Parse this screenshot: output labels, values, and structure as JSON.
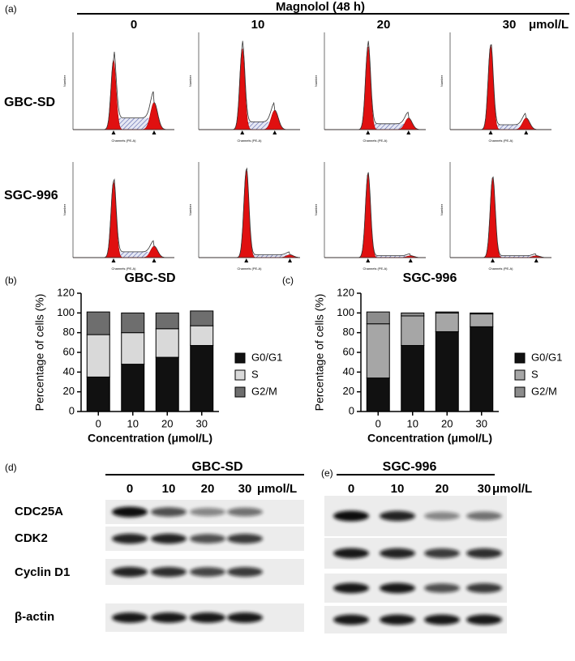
{
  "panel_a": {
    "label": "(a)",
    "title": "Magnolol (48 h)",
    "concentrations": [
      "0",
      "10",
      "20",
      "30"
    ],
    "unit": "μmol/L",
    "rows": [
      "GBC-SD",
      "SGC-996"
    ],
    "x_axis": "Channels (PE-A)",
    "y_axis": "Number"
  },
  "chart_data": [
    {
      "type": "stacked_bar",
      "label": "(b)",
      "title": "GBC-SD",
      "x_label": "Concentration (μmol/L)",
      "y_label": "Percentage of cells (%)",
      "categories": [
        "0",
        "10",
        "20",
        "30"
      ],
      "ylim": [
        0,
        120
      ],
      "yticks": [
        0,
        20,
        40,
        60,
        80,
        100,
        120
      ],
      "series": [
        {
          "name": "G0/G1",
          "color": "#111111",
          "values": [
            35,
            48,
            55,
            67
          ]
        },
        {
          "name": "S",
          "color": "#d9d9d9",
          "values": [
            43,
            32,
            29,
            20
          ]
        },
        {
          "name": "G2/M",
          "color": "#6e6e6e",
          "values": [
            23,
            20,
            16,
            15
          ]
        }
      ]
    },
    {
      "type": "stacked_bar",
      "label": "(c)",
      "title": "SGC-996",
      "x_label": "Concentration (μmol/L)",
      "y_label": "Percentage of cells (%)",
      "categories": [
        "0",
        "10",
        "20",
        "30"
      ],
      "ylim": [
        0,
        120
      ],
      "yticks": [
        0,
        20,
        40,
        60,
        80,
        100,
        120
      ],
      "series": [
        {
          "name": "G0/G1",
          "color": "#111111",
          "values": [
            34,
            67,
            81,
            86
          ]
        },
        {
          "name": "S",
          "color": "#a6a6a6",
          "values": [
            55,
            30,
            19,
            13
          ]
        },
        {
          "name": "G2/M",
          "color": "#8c8c8c",
          "values": [
            12,
            3,
            1,
            1
          ]
        }
      ]
    }
  ],
  "western": [
    {
      "label": "(d)",
      "cell_line": "GBC-SD",
      "concentrations": [
        "0",
        "10",
        "20",
        "30"
      ],
      "unit": "μmol/L",
      "proteins": [
        "CDC25A",
        "CDK2",
        "Cyclin D1",
        "β-actin"
      ]
    },
    {
      "label": "(e)",
      "cell_line": "SGC-996",
      "concentrations": [
        "0",
        "10",
        "20",
        "30"
      ],
      "unit": "μmol/L"
    }
  ]
}
